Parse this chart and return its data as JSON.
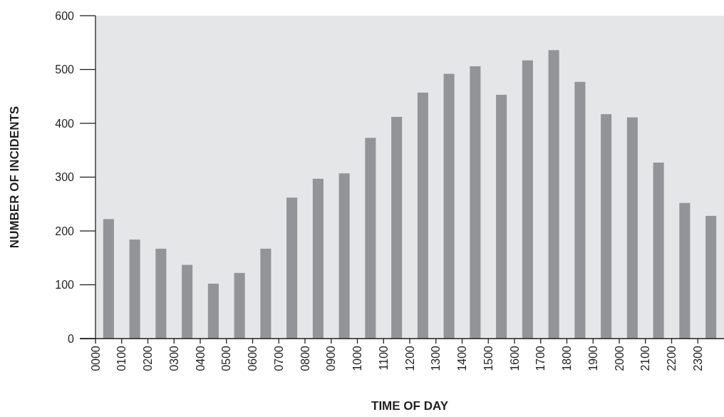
{
  "chart_data": {
    "type": "bar",
    "xlabel": "TIME OF DAY",
    "ylabel": "NUMBER OF INCIDENTS",
    "categories": [
      "0000",
      "0100",
      "0200",
      "0300",
      "0400",
      "0500",
      "0600",
      "0700",
      "0800",
      "0900",
      "1000",
      "1100",
      "1200",
      "1300",
      "1400",
      "1500",
      "1600",
      "1700",
      "1800",
      "1900",
      "2000",
      "2100",
      "2200",
      "2300"
    ],
    "values": [
      222,
      184,
      167,
      137,
      102,
      122,
      167,
      262,
      297,
      307,
      373,
      412,
      457,
      492,
      506,
      453,
      517,
      536,
      477,
      417,
      411,
      327,
      252,
      228
    ],
    "color": "#939497",
    "ylim": [
      0,
      600
    ],
    "yticks": [
      0,
      100,
      200,
      300,
      400,
      500,
      600
    ],
    "grid": false
  }
}
